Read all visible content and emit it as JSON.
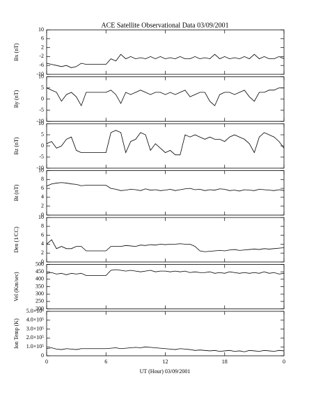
{
  "title": "ACE Satellite Observational Data   03/09/2001",
  "xlabel": "UT (Hour)   03/09/2001",
  "xlim": [
    0,
    24
  ],
  "xticks": [
    0,
    6,
    12,
    18,
    {
      "value": 24,
      "label": "0"
    }
  ],
  "x": [
    0,
    0.5,
    1,
    1.5,
    2,
    2.5,
    3,
    3.5,
    4,
    4.5,
    5,
    5.5,
    6,
    6.5,
    7,
    7.5,
    8,
    8.5,
    9,
    9.5,
    10,
    10.5,
    11,
    11.5,
    12,
    12.5,
    13,
    13.5,
    14,
    14.5,
    15,
    15.5,
    16,
    16.5,
    17,
    17.5,
    18,
    18.5,
    19,
    19.5,
    20,
    20.5,
    21,
    21.5,
    22,
    22.5,
    23,
    23.5,
    24
  ],
  "chart_data": [
    {
      "type": "line",
      "ylabel": "Bx (nT)",
      "ylim": [
        -10,
        10
      ],
      "yticks": [
        10,
        6,
        2,
        -2,
        -6,
        -10
      ],
      "values": [
        -5,
        -5.5,
        -6,
        -6.5,
        -6,
        -7,
        -6.5,
        -5,
        -5.5,
        -5.5,
        -5.5,
        -5.5,
        -5.5,
        -3,
        -4,
        -1,
        -3,
        -2,
        -3,
        -2.5,
        -3,
        -2,
        -3,
        -2,
        -3,
        -2.5,
        -3,
        -2,
        -3,
        -3,
        -2,
        -3,
        -2.5,
        -3,
        -1,
        -3,
        -2,
        -3,
        -2.5,
        -3,
        -2,
        -3,
        -1,
        -3,
        -2,
        -3,
        -3,
        -2,
        -3
      ]
    },
    {
      "type": "line",
      "ylabel": "By (nT)",
      "ylim": [
        -10,
        10
      ],
      "yticks": [
        10,
        5,
        0,
        -5,
        -10
      ],
      "values": [
        5,
        4,
        3,
        -1,
        2,
        3,
        1,
        -3,
        3,
        3,
        3,
        3,
        3,
        4,
        2,
        -2,
        3,
        2,
        3,
        4,
        3,
        2,
        3,
        3,
        2,
        3,
        2,
        3,
        4,
        1,
        2,
        3,
        3,
        -1,
        -3,
        2,
        3,
        3,
        2,
        3,
        4,
        1,
        -1,
        3,
        3,
        4,
        4,
        5,
        5
      ]
    },
    {
      "type": "line",
      "ylabel": "Bz (nT)",
      "ylim": [
        -10,
        10
      ],
      "yticks": [
        10,
        5,
        0,
        -5,
        -10
      ],
      "values": [
        1,
        2,
        -1,
        0,
        3,
        4,
        -2,
        -3,
        -3,
        -3,
        -3,
        -3,
        -3,
        6,
        7,
        6,
        -3,
        2,
        3,
        6,
        5,
        -2,
        1,
        -1,
        -3,
        -2,
        -4,
        -4,
        5,
        4,
        5,
        4,
        3,
        4,
        3,
        3,
        2,
        4,
        5,
        4,
        3,
        1,
        -3,
        4,
        6,
        5,
        4,
        2,
        -1
      ]
    },
    {
      "type": "line",
      "ylabel": "Bt (nT)",
      "ylim": [
        0,
        10
      ],
      "yticks": [
        10,
        8,
        6,
        4,
        2,
        0
      ],
      "values": [
        6.5,
        7,
        7.2,
        7.3,
        7.2,
        7,
        6.9,
        6.6,
        6.7,
        6.7,
        6.7,
        6.7,
        6.7,
        6,
        5.8,
        5.5,
        5.6,
        5.8,
        5.7,
        5.5,
        5.9,
        5.6,
        5.7,
        5.5,
        5.6,
        5.8,
        5.5,
        5.7,
        5.9,
        6,
        5.7,
        5.8,
        5.5,
        5.7,
        5.6,
        5.9,
        5.8,
        5.5,
        5.6,
        5.4,
        5.7,
        5.6,
        5.5,
        5.8,
        5.7,
        5.6,
        5.5,
        5.7,
        5.5
      ]
    },
    {
      "type": "line",
      "ylabel": "Den (1/CC)",
      "ylim": [
        0,
        10
      ],
      "yticks": [
        10,
        8,
        6,
        4,
        2,
        0
      ],
      "values": [
        4,
        5,
        3,
        3.5,
        3,
        3,
        3.5,
        3.5,
        2.5,
        2.5,
        2.5,
        2.5,
        2.5,
        3.5,
        3.5,
        3.5,
        3.7,
        3.6,
        3.5,
        3.8,
        3.7,
        3.9,
        3.8,
        4,
        3.9,
        4,
        4,
        4.1,
        4,
        4,
        3.5,
        2.5,
        2.3,
        2.4,
        2.5,
        2.6,
        2.5,
        2.7,
        2.8,
        2.6,
        2.7,
        2.8,
        2.9,
        2.8,
        3,
        2.9,
        3,
        3.1,
        3.2
      ]
    },
    {
      "type": "line",
      "ylabel": "Vel (Km/sec)",
      "ylim": [
        200,
        500
      ],
      "yticks": [
        500,
        450,
        400,
        350,
        300,
        250,
        200
      ],
      "values": [
        440,
        445,
        435,
        440,
        430,
        440,
        435,
        440,
        425,
        425,
        425,
        425,
        425,
        460,
        465,
        460,
        455,
        460,
        455,
        450,
        455,
        460,
        450,
        455,
        455,
        450,
        455,
        450,
        455,
        445,
        450,
        445,
        445,
        450,
        440,
        445,
        440,
        450,
        445,
        440,
        445,
        440,
        445,
        440,
        450,
        440,
        445,
        435,
        440
      ]
    },
    {
      "type": "line",
      "ylabel": "Ion Temp (K)",
      "ylim": [
        0,
        500000
      ],
      "yticks": [
        {
          "value": 500000,
          "label": "5.0×10⁵"
        },
        {
          "value": 400000,
          "label": "4.0×10⁵"
        },
        {
          "value": 300000,
          "label": "3.0×10⁵"
        },
        {
          "value": 200000,
          "label": "2.0×10⁵"
        },
        {
          "value": 100000,
          "label": "1.0×10⁵"
        },
        0
      ],
      "values": [
        80000,
        90000,
        75000,
        70000,
        80000,
        75000,
        70000,
        80000,
        80000,
        80000,
        80000,
        80000,
        80000,
        85000,
        90000,
        80000,
        85000,
        90000,
        95000,
        90000,
        100000,
        95000,
        90000,
        85000,
        80000,
        75000,
        70000,
        80000,
        75000,
        70000,
        60000,
        65000,
        60000,
        55000,
        60000,
        50000,
        55000,
        60000,
        50000,
        55000,
        45000,
        60000,
        55000,
        50000,
        60000,
        55000,
        50000,
        60000,
        55000
      ]
    }
  ]
}
